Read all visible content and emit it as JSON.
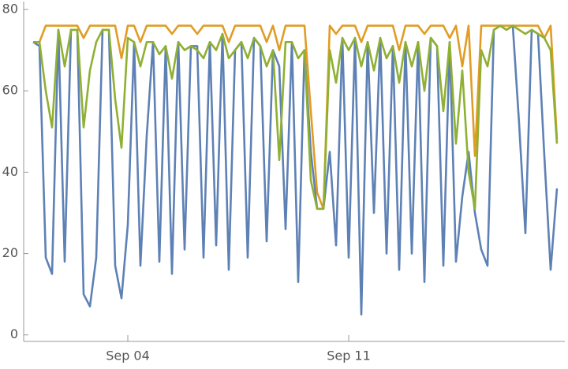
{
  "chart_data": {
    "type": "line",
    "x": [
      1.0,
      1.2,
      1.4,
      1.6,
      1.8,
      2.0,
      2.2,
      2.4,
      2.6,
      2.8,
      3.0,
      3.2,
      3.4,
      3.6,
      3.8,
      4.0,
      4.2,
      4.4,
      4.6,
      4.8,
      5.0,
      5.2,
      5.4,
      5.6,
      5.8,
      6.0,
      6.2,
      6.4,
      6.6,
      6.8,
      7.0,
      7.2,
      7.4,
      7.6,
      7.8,
      8.0,
      8.2,
      8.4,
      8.6,
      8.8,
      9.0,
      9.2,
      9.4,
      9.6,
      9.8,
      10.0,
      10.2,
      10.4,
      10.6,
      10.8,
      11.0,
      11.2,
      11.4,
      11.6,
      11.8,
      12.0,
      12.2,
      12.4,
      12.6,
      12.8,
      13.0,
      13.2,
      13.4,
      13.6,
      13.8,
      14.0,
      14.2,
      14.4,
      14.6,
      14.8,
      15.0,
      15.2,
      15.4,
      15.6,
      15.8,
      16.0,
      16.2,
      16.4,
      16.6,
      16.8,
      17.0,
      17.2,
      17.4,
      17.6
    ],
    "series": [
      {
        "color": "#5e81b5",
        "values": [
          72,
          71,
          19,
          15,
          75,
          18,
          75,
          75,
          10,
          7,
          19,
          75,
          75,
          17,
          9,
          27,
          72,
          17,
          49,
          72,
          18,
          71,
          15,
          72,
          21,
          71,
          71,
          19,
          72,
          22,
          74,
          16,
          70,
          72,
          19,
          73,
          71,
          23,
          70,
          66,
          26,
          72,
          13,
          70,
          45,
          31,
          31,
          45,
          22,
          73,
          19,
          73,
          5,
          72,
          30,
          73,
          20,
          71,
          16,
          72,
          20,
          72,
          13,
          73,
          71,
          17,
          72,
          18,
          34,
          45,
          30,
          21,
          17,
          75,
          76,
          75,
          76,
          52,
          25,
          75,
          74,
          44,
          16,
          36
        ]
      },
      {
        "color": "#e19c24",
        "values": [
          72,
          72,
          76,
          76,
          76,
          76,
          76,
          76,
          73,
          76,
          76,
          76,
          76,
          76,
          68,
          76,
          76,
          72,
          76,
          76,
          76,
          76,
          74,
          76,
          76,
          76,
          74,
          76,
          76,
          76,
          76,
          72,
          76,
          76,
          76,
          76,
          76,
          72,
          76,
          70,
          76,
          76,
          76,
          76,
          55,
          35,
          31,
          76,
          74,
          76,
          76,
          76,
          72,
          76,
          76,
          76,
          76,
          76,
          70,
          76,
          76,
          76,
          74,
          76,
          76,
          76,
          73,
          76,
          66,
          76,
          44,
          76,
          76,
          76,
          76,
          76,
          76,
          76,
          76,
          76,
          76,
          73,
          76,
          48
        ]
      },
      {
        "color": "#8fb032",
        "values": [
          72,
          72,
          60,
          51,
          75,
          66,
          75,
          75,
          51,
          65,
          72,
          75,
          75,
          58,
          46,
          73,
          72,
          66,
          72,
          72,
          69,
          71,
          63,
          72,
          70,
          71,
          70,
          68,
          72,
          70,
          74,
          68,
          70,
          72,
          68,
          73,
          71,
          66,
          70,
          43,
          72,
          72,
          68,
          70,
          38,
          31,
          31,
          70,
          62,
          73,
          70,
          73,
          66,
          72,
          65,
          73,
          68,
          71,
          62,
          72,
          66,
          72,
          60,
          73,
          71,
          55,
          72,
          47,
          65,
          40,
          31,
          70,
          66,
          75,
          76,
          75,
          76,
          75,
          74,
          75,
          74,
          73,
          70,
          47
        ]
      }
    ],
    "xlim": [
      0.7,
      17.85
    ],
    "xticks": [
      {
        "value": 4,
        "label": "Sep 04"
      },
      {
        "value": 11,
        "label": "Sep 11"
      }
    ],
    "ylim": [
      -1.6,
      80
    ],
    "yticks": [
      0,
      20,
      40,
      60,
      80
    ]
  }
}
